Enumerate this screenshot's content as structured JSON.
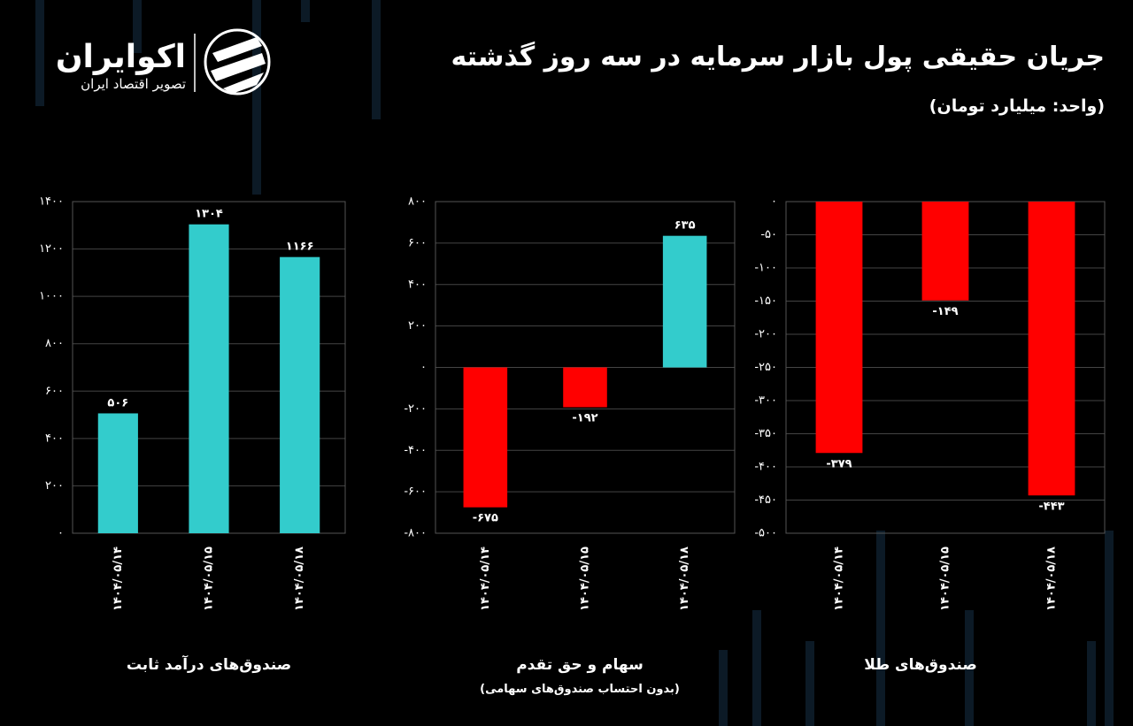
{
  "header": {
    "title": "جریان حقیقی پول بازار سرمایه در سه روز گذشته",
    "unit": "(واحد: میلیارد تومان)",
    "brand": "اکوایران",
    "brand_tagline": "تصویر اقتصاد ایران"
  },
  "chart_data": [
    {
      "type": "bar",
      "title": "صندوق‌های درآمد ثابت",
      "categories": [
        "۱۴۰۴/۰۵/۱۴",
        "۱۴۰۴/۰۵/۱۵",
        "۱۴۰۴/۰۵/۱۸"
      ],
      "values": [
        506,
        1304,
        1166
      ],
      "value_labels": [
        "۵۰۶",
        "۱۳۰۴",
        "۱۱۶۶"
      ],
      "colors": [
        "#33cccc",
        "#33cccc",
        "#33cccc"
      ],
      "ylim": [
        0,
        1400
      ],
      "yticks": [
        {
          "value": 0,
          "label": "۰"
        },
        {
          "value": 200,
          "label": "۲۰۰"
        },
        {
          "value": 400,
          "label": "۴۰۰"
        },
        {
          "value": 600,
          "label": "۶۰۰"
        },
        {
          "value": 800,
          "label": "۸۰۰"
        },
        {
          "value": 1000,
          "label": "۱۰۰۰"
        },
        {
          "value": 1200,
          "label": "۱۲۰۰"
        },
        {
          "value": 1400,
          "label": "۱۴۰۰"
        }
      ],
      "grid": true
    },
    {
      "type": "bar",
      "title": "سهام و حق تقدم",
      "subtitle": "(بدون احتساب صندوق‌های سهامی)",
      "categories": [
        "۱۴۰۴/۰۵/۱۴",
        "۱۴۰۴/۰۵/۱۵",
        "۱۴۰۴/۰۵/۱۸"
      ],
      "values": [
        -675,
        -192,
        635
      ],
      "value_labels": [
        "-۶۷۵",
        "-۱۹۲",
        "۶۳۵"
      ],
      "colors": [
        "#ff0000",
        "#ff0000",
        "#33cccc"
      ],
      "ylim": [
        -800,
        800
      ],
      "yticks": [
        {
          "value": -800,
          "label": "-۸۰۰"
        },
        {
          "value": -600,
          "label": "-۶۰۰"
        },
        {
          "value": -400,
          "label": "-۴۰۰"
        },
        {
          "value": -200,
          "label": "-۲۰۰"
        },
        {
          "value": 0,
          "label": "۰"
        },
        {
          "value": 200,
          "label": "۲۰۰"
        },
        {
          "value": 400,
          "label": "۴۰۰"
        },
        {
          "value": 600,
          "label": "۶۰۰"
        },
        {
          "value": 800,
          "label": "۸۰۰"
        }
      ],
      "grid": true
    },
    {
      "type": "bar",
      "title": "صندوق‌های طلا",
      "categories": [
        "۱۴۰۴/۰۵/۱۴",
        "۱۴۰۴/۰۵/۱۵",
        "۱۴۰۴/۰۵/۱۸"
      ],
      "values": [
        -379,
        -149,
        -443
      ],
      "value_labels": [
        "-۳۷۹",
        "-۱۴۹",
        "-۴۴۳"
      ],
      "colors": [
        "#ff0000",
        "#ff0000",
        "#ff0000"
      ],
      "ylim": [
        -500,
        0
      ],
      "yticks": [
        {
          "value": -500,
          "label": "-۵۰۰"
        },
        {
          "value": -450,
          "label": "-۴۵۰"
        },
        {
          "value": -400,
          "label": "-۴۰۰"
        },
        {
          "value": -350,
          "label": "-۳۵۰"
        },
        {
          "value": -300,
          "label": "-۳۰۰"
        },
        {
          "value": -250,
          "label": "-۲۵۰"
        },
        {
          "value": -200,
          "label": "-۲۰۰"
        },
        {
          "value": -150,
          "label": "-۱۵۰"
        },
        {
          "value": -100,
          "label": "-۱۰۰"
        },
        {
          "value": -50,
          "label": "-۵۰"
        },
        {
          "value": 0,
          "label": "۰"
        }
      ],
      "grid": true
    }
  ]
}
